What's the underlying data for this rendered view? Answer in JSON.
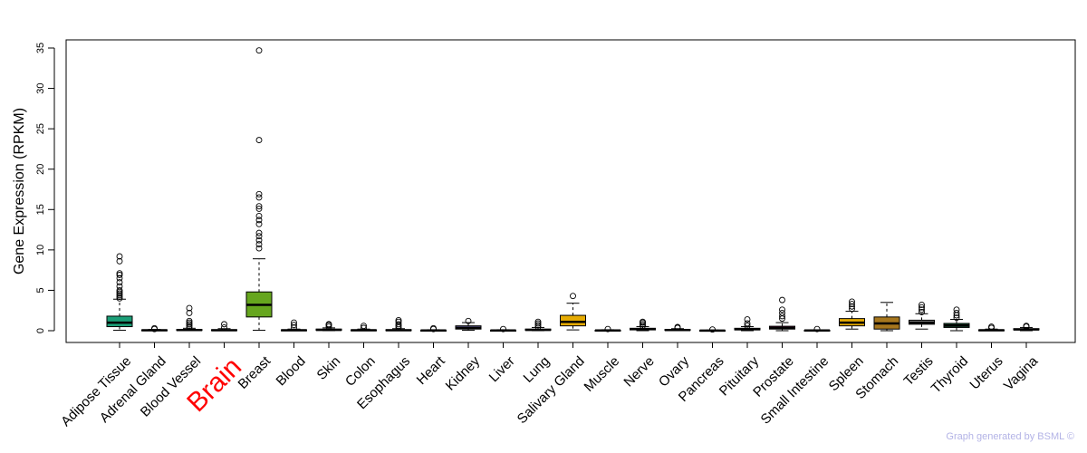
{
  "chart_data": {
    "type": "boxplot",
    "ylabel": "Gene Expression (RPKM)",
    "ylim": [
      0,
      35
    ],
    "yticks": [
      0,
      5,
      10,
      15,
      20,
      25,
      30,
      35
    ],
    "highlight_category": "Brain",
    "highlight_color": "#ff0000",
    "categories": [
      {
        "name": "Adipose Tissue",
        "color": "#1b9e77",
        "q1": 0.5,
        "median": 1.0,
        "q3": 1.8,
        "wlo": 0.05,
        "whi": 3.9,
        "outliers": [
          4.0,
          4.2,
          4.4,
          4.6,
          4.8,
          5.0,
          5.5,
          6.0,
          6.5,
          6.9,
          7.1,
          8.6,
          9.2
        ]
      },
      {
        "name": "Adrenal Gland",
        "color": "#7570b3",
        "q1": 0.02,
        "median": 0.05,
        "q3": 0.1,
        "wlo": 0.0,
        "whi": 0.15,
        "outliers": [
          0.2,
          0.3
        ]
      },
      {
        "name": "Blood Vessel",
        "color": "#888888",
        "q1": 0.03,
        "median": 0.08,
        "q3": 0.15,
        "wlo": 0.0,
        "whi": 0.3,
        "outliers": [
          0.4,
          0.6,
          0.8,
          1.0,
          1.2,
          2.2,
          2.8
        ]
      },
      {
        "name": "Brain",
        "color": "#888888",
        "q1": 0.02,
        "median": 0.06,
        "q3": 0.12,
        "wlo": 0.0,
        "whi": 0.25,
        "outliers": [
          0.4,
          0.8
        ]
      },
      {
        "name": "Breast",
        "color": "#66a61e",
        "q1": 1.7,
        "median": 3.2,
        "q3": 4.8,
        "wlo": 0.05,
        "whi": 8.9,
        "outliers": [
          10.2,
          10.7,
          11.2,
          11.7,
          12.1,
          13.2,
          13.7,
          14.2,
          15.1,
          15.4,
          16.5,
          16.9,
          23.6,
          34.7
        ]
      },
      {
        "name": "Blood",
        "color": "#888888",
        "q1": 0.02,
        "median": 0.05,
        "q3": 0.1,
        "wlo": 0.0,
        "whi": 0.2,
        "outliers": [
          0.4,
          0.7,
          1.0
        ]
      },
      {
        "name": "Skin",
        "color": "#888888",
        "q1": 0.05,
        "median": 0.1,
        "q3": 0.2,
        "wlo": 0.0,
        "whi": 0.35,
        "outliers": [
          0.5,
          0.7,
          0.8
        ]
      },
      {
        "name": "Colon",
        "color": "#888888",
        "q1": 0.02,
        "median": 0.05,
        "q3": 0.1,
        "wlo": 0.0,
        "whi": 0.2,
        "outliers": [
          0.35,
          0.6
        ]
      },
      {
        "name": "Esophagus",
        "color": "#888888",
        "q1": 0.03,
        "median": 0.06,
        "q3": 0.12,
        "wlo": 0.0,
        "whi": 0.25,
        "outliers": [
          0.4,
          0.6,
          0.8,
          1.1,
          1.3
        ]
      },
      {
        "name": "Heart",
        "color": "#888888",
        "q1": 0.01,
        "median": 0.03,
        "q3": 0.06,
        "wlo": 0.0,
        "whi": 0.12,
        "outliers": [
          0.2,
          0.3
        ]
      },
      {
        "name": "Kidney",
        "color": "#7570b3",
        "q1": 0.2,
        "median": 0.35,
        "q3": 0.6,
        "wlo": 0.05,
        "whi": 1.0,
        "outliers": [
          1.2
        ]
      },
      {
        "name": "Liver",
        "color": "#888888",
        "q1": 0.01,
        "median": 0.03,
        "q3": 0.06,
        "wlo": 0.0,
        "whi": 0.12,
        "outliers": [
          0.2
        ]
      },
      {
        "name": "Lung",
        "color": "#888888",
        "q1": 0.05,
        "median": 0.1,
        "q3": 0.2,
        "wlo": 0.0,
        "whi": 0.4,
        "outliers": [
          0.5,
          0.7,
          0.9,
          1.1
        ]
      },
      {
        "name": "Salivary Gland",
        "color": "#e6ab02",
        "q1": 0.6,
        "median": 1.1,
        "q3": 1.9,
        "wlo": 0.1,
        "whi": 3.4,
        "outliers": [
          4.3
        ]
      },
      {
        "name": "Muscle",
        "color": "#888888",
        "q1": 0.01,
        "median": 0.03,
        "q3": 0.06,
        "wlo": 0.0,
        "whi": 0.12,
        "outliers": [
          0.2
        ]
      },
      {
        "name": "Nerve",
        "color": "#888888",
        "q1": 0.1,
        "median": 0.2,
        "q3": 0.3,
        "wlo": 0.0,
        "whi": 0.5,
        "outliers": [
          0.6,
          0.8,
          1.0,
          1.1
        ]
      },
      {
        "name": "Ovary",
        "color": "#888888",
        "q1": 0.05,
        "median": 0.08,
        "q3": 0.15,
        "wlo": 0.0,
        "whi": 0.25,
        "outliers": [
          0.35,
          0.45
        ]
      },
      {
        "name": "Pancreas",
        "color": "#888888",
        "q1": 0.01,
        "median": 0.02,
        "q3": 0.05,
        "wlo": 0.0,
        "whi": 0.08,
        "outliers": [
          0.15
        ]
      },
      {
        "name": "Pituitary",
        "color": "#888888",
        "q1": 0.1,
        "median": 0.18,
        "q3": 0.3,
        "wlo": 0.0,
        "whi": 0.5,
        "outliers": [
          0.6,
          0.9,
          1.4
        ]
      },
      {
        "name": "Prostate",
        "color": "#e7298a",
        "q1": 0.2,
        "median": 0.35,
        "q3": 0.55,
        "wlo": 0.0,
        "whi": 1.0,
        "outliers": [
          1.5,
          1.8,
          2.2,
          2.6,
          3.8
        ]
      },
      {
        "name": "Small Intestine",
        "color": "#888888",
        "q1": 0.01,
        "median": 0.03,
        "q3": 0.06,
        "wlo": 0.0,
        "whi": 0.1,
        "outliers": [
          0.2
        ]
      },
      {
        "name": "Spleen",
        "color": "#e6ab02",
        "q1": 0.6,
        "median": 1.0,
        "q3": 1.5,
        "wlo": 0.2,
        "whi": 2.4,
        "outliers": [
          2.7,
          3.0,
          3.3,
          3.6
        ]
      },
      {
        "name": "Stomach",
        "color": "#a6761d",
        "q1": 0.2,
        "median": 0.9,
        "q3": 1.7,
        "wlo": 0.0,
        "whi": 3.5,
        "outliers": []
      },
      {
        "name": "Testis",
        "color": "#888888",
        "q1": 0.8,
        "median": 1.0,
        "q3": 1.3,
        "wlo": 0.2,
        "whi": 2.1,
        "outliers": [
          2.3,
          2.6,
          2.9,
          3.2
        ]
      },
      {
        "name": "Thyroid",
        "color": "#1b5e3b",
        "q1": 0.4,
        "median": 0.65,
        "q3": 0.9,
        "wlo": 0.0,
        "whi": 1.4,
        "outliers": [
          1.6,
          1.9,
          2.2,
          2.6
        ]
      },
      {
        "name": "Uterus",
        "color": "#888888",
        "q1": 0.02,
        "median": 0.05,
        "q3": 0.1,
        "wlo": 0.0,
        "whi": 0.2,
        "outliers": [
          0.35,
          0.5
        ]
      },
      {
        "name": "Vagina",
        "color": "#888888",
        "q1": 0.1,
        "median": 0.15,
        "q3": 0.25,
        "wlo": 0.0,
        "whi": 0.4,
        "outliers": [
          0.5,
          0.6
        ]
      }
    ]
  },
  "footer": "Graph generated by BSML ©"
}
